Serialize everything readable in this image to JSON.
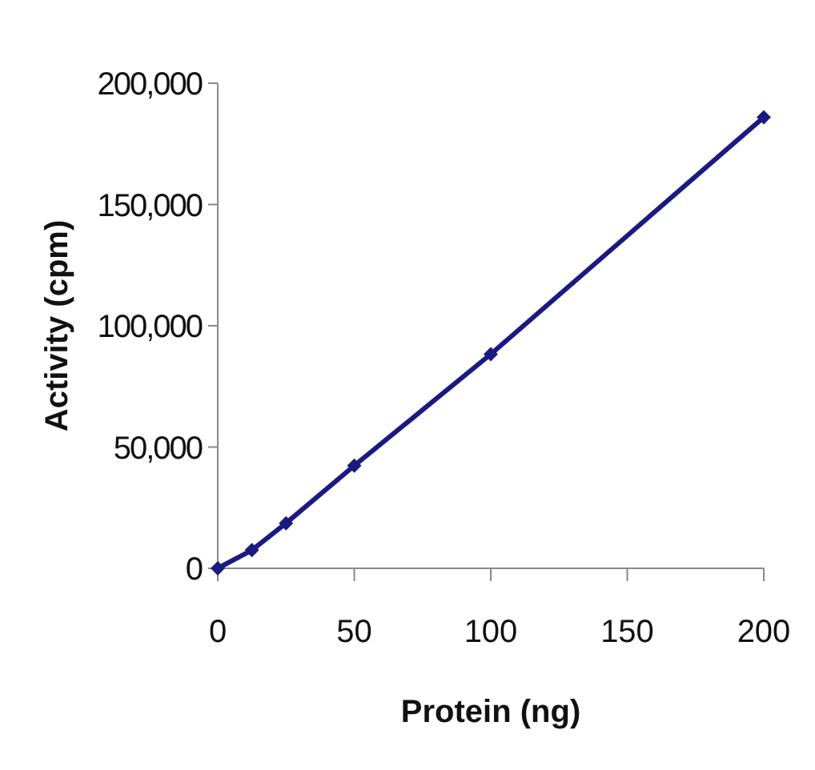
{
  "chart_data": {
    "type": "line",
    "xlabel": "Protein (ng)",
    "ylabel": "Activity (cpm)",
    "x": [
      0,
      12.5,
      25,
      50,
      100,
      200
    ],
    "series": [
      {
        "color": "#1a1a80",
        "values": [
          0,
          7500,
          18600,
          42300,
          88300,
          186000
        ]
      }
    ],
    "xlim": [
      0,
      200
    ],
    "xticks": [
      0,
      50,
      100,
      150,
      200
    ],
    "ylim": [
      0,
      200000
    ],
    "yticks": [
      {
        "value": 0,
        "label": "0"
      },
      {
        "value": 50000,
        "label": "50,000"
      },
      {
        "value": 100000,
        "label": "100,000"
      },
      {
        "value": 150000,
        "label": "150,000"
      },
      {
        "value": 200000,
        "label": "200,000"
      }
    ],
    "grid": false,
    "marker": "diamond",
    "line_style": "solid"
  }
}
